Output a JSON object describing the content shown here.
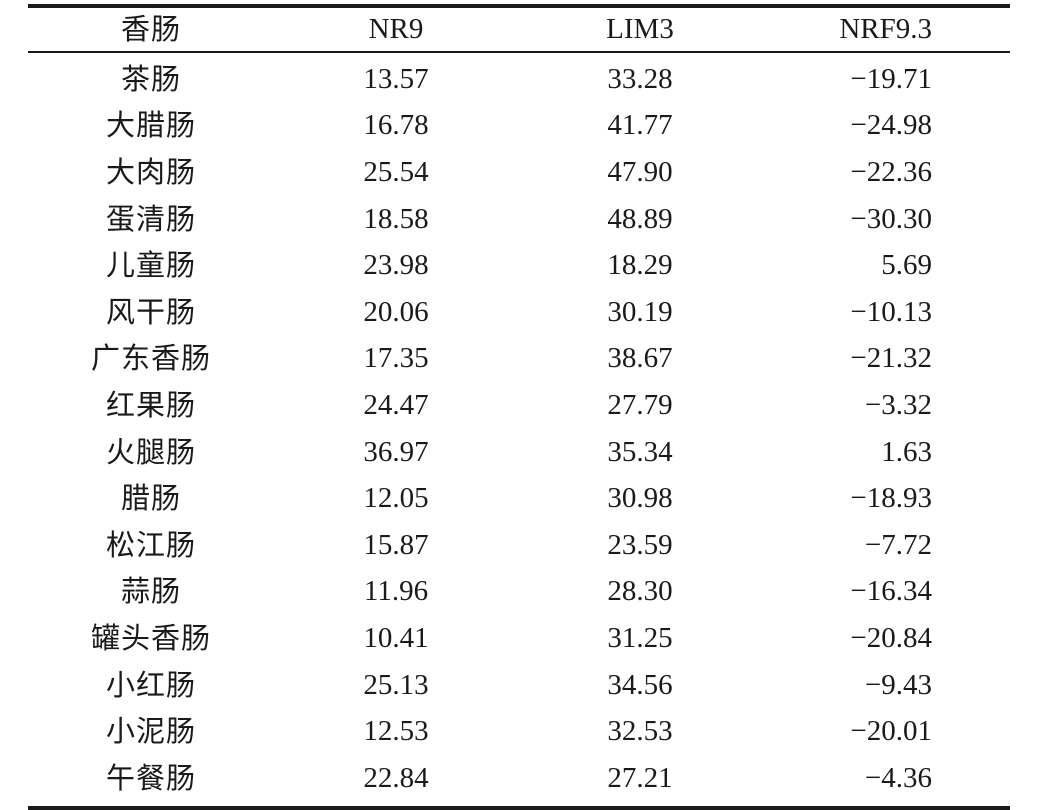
{
  "table": {
    "headers": [
      "香肠",
      "NR9",
      "LIM3",
      "NRF9.3"
    ],
    "rows": [
      [
        "茶肠",
        "13.57",
        "33.28",
        "−19.71"
      ],
      [
        "大腊肠",
        "16.78",
        "41.77",
        "−24.98"
      ],
      [
        "大肉肠",
        "25.54",
        "47.90",
        "−22.36"
      ],
      [
        "蛋清肠",
        "18.58",
        "48.89",
        "−30.30"
      ],
      [
        "儿童肠",
        "23.98",
        "18.29",
        "5.69"
      ],
      [
        "风干肠",
        "20.06",
        "30.19",
        "−10.13"
      ],
      [
        "广东香肠",
        "17.35",
        "38.67",
        "−21.32"
      ],
      [
        "红果肠",
        "24.47",
        "27.79",
        "−3.32"
      ],
      [
        "火腿肠",
        "36.97",
        "35.34",
        "1.63"
      ],
      [
        "腊肠",
        "12.05",
        "30.98",
        "−18.93"
      ],
      [
        "松江肠",
        "15.87",
        "23.59",
        "−7.72"
      ],
      [
        "蒜肠",
        "11.96",
        "28.30",
        "−16.34"
      ],
      [
        "罐头香肠",
        "10.41",
        "31.25",
        "−20.84"
      ],
      [
        "小红肠",
        "25.13",
        "34.56",
        "−9.43"
      ],
      [
        "小泥肠",
        "12.53",
        "32.53",
        "−20.01"
      ],
      [
        "午餐肠",
        "22.84",
        "27.21",
        "−4.36"
      ]
    ]
  }
}
